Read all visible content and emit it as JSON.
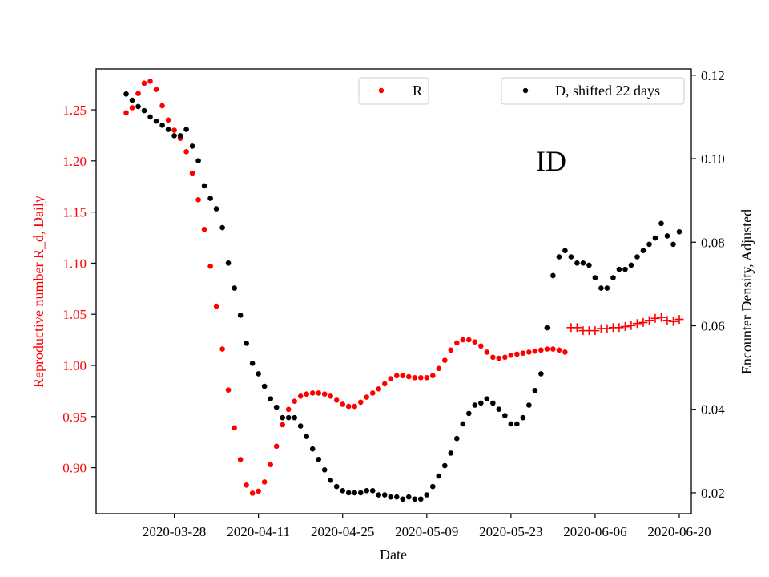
{
  "chart_data": {
    "type": "scatter",
    "annotation": "ID",
    "xlabel": "Date",
    "ylabel_left": "Reproductive number R_d, Daily",
    "ylabel_right": "Encounter Density, Adjusted",
    "x_tick_labels": [
      "2020-03-28",
      "2020-04-11",
      "2020-04-25",
      "2020-05-09",
      "2020-05-23",
      "2020-06-06",
      "2020-06-20"
    ],
    "x_ticks": [
      "2020-03-28",
      "2020-04-11",
      "2020-04-25",
      "2020-05-09",
      "2020-05-23",
      "2020-06-06",
      "2020-06-20"
    ],
    "xlim": [
      "2020-03-15",
      "2020-06-22"
    ],
    "ylim_left": [
      0.855,
      1.29
    ],
    "ylim_right": [
      0.015,
      0.1215
    ],
    "yticks_left": [
      0.9,
      0.95,
      1.0,
      1.05,
      1.1,
      1.15,
      1.2,
      1.25
    ],
    "ytick_labels_left": [
      "0.90",
      "0.95",
      "1.00",
      "1.05",
      "1.10",
      "1.15",
      "1.20",
      "1.25"
    ],
    "yticks_right": [
      0.02,
      0.04,
      0.06,
      0.08,
      0.1,
      0.12
    ],
    "ytick_labels_right": [
      "0.02",
      "0.04",
      "0.06",
      "0.08",
      "0.10",
      "0.12"
    ],
    "colors": {
      "R": "#ff0000",
      "D": "#000000",
      "left_axis_text": "#ff0000"
    },
    "legend_left": {
      "label": "R",
      "color": "#ff0000",
      "placement": "top-center"
    },
    "legend_right": {
      "label": "D, shifted 22 days",
      "color": "#000000",
      "placement": "top-right"
    },
    "series": [
      {
        "name": "R",
        "axis": "left",
        "marker": "dot",
        "color": "#ff0000",
        "start_date": "2020-03-20",
        "values": [
          1.247,
          1.252,
          1.266,
          1.276,
          1.278,
          1.27,
          1.254,
          1.24,
          1.23,
          1.222,
          1.209,
          1.188,
          1.162,
          1.133,
          1.097,
          1.058,
          1.016,
          0.976,
          0.939,
          0.908,
          0.883,
          0.875,
          0.877,
          0.886,
          0.903,
          0.921,
          0.942,
          0.957,
          0.965,
          0.97,
          0.972,
          0.973,
          0.973,
          0.972,
          0.97,
          0.966,
          0.962,
          0.96,
          0.96,
          0.964,
          0.969,
          0.973,
          0.977,
          0.982,
          0.987,
          0.99,
          0.99,
          0.989,
          0.988,
          0.988,
          0.988,
          0.99,
          0.997,
          1.005,
          1.015,
          1.022,
          1.025,
          1.025,
          1.023,
          1.019,
          1.013,
          1.008,
          1.007,
          1.008,
          1.01,
          1.011,
          1.012,
          1.013,
          1.014,
          1.015,
          1.016,
          1.016,
          1.015,
          1.013
        ]
      },
      {
        "name": "R",
        "axis": "left",
        "marker": "plus",
        "color": "#ff0000",
        "start_date": "2020-06-02",
        "values": [
          1.037,
          1.037,
          1.034,
          1.034,
          1.034,
          1.036,
          1.036,
          1.037,
          1.037,
          1.038,
          1.039,
          1.041,
          1.042,
          1.044,
          1.046,
          1.047,
          1.044,
          1.043,
          1.045
        ]
      },
      {
        "name": "D, shifted 22 days",
        "axis": "right",
        "marker": "dot",
        "color": "#000000",
        "start_date": "2020-03-20",
        "values": [
          0.1155,
          0.114,
          0.1125,
          0.1115,
          0.11,
          0.109,
          0.108,
          0.107,
          0.1055,
          0.1055,
          0.107,
          0.103,
          0.0995,
          0.0935,
          0.0905,
          0.088,
          0.0835,
          0.075,
          0.069,
          0.0625,
          0.0558,
          0.051,
          0.0485,
          0.0455,
          0.0425,
          0.0405,
          0.038,
          0.038,
          0.038,
          0.036,
          0.0335,
          0.0305,
          0.028,
          0.0255,
          0.023,
          0.0215,
          0.0205,
          0.02,
          0.02,
          0.02,
          0.0205,
          0.0205,
          0.0195,
          0.0195,
          0.019,
          0.019,
          0.0185,
          0.019,
          0.0185,
          0.0185,
          0.0195,
          0.0215,
          0.024,
          0.0265,
          0.0295,
          0.033,
          0.0365,
          0.039,
          0.041,
          0.0415,
          0.0425,
          0.0415,
          0.04,
          0.0385,
          0.0365,
          0.0365,
          0.038,
          0.041,
          0.0445,
          0.0485,
          0.0595,
          0.072,
          0.0765,
          0.078,
          0.0765,
          0.075,
          0.075,
          0.0745,
          0.0715,
          0.069,
          0.069,
          0.0715,
          0.0735,
          0.0735,
          0.0745,
          0.0765,
          0.078,
          0.0795,
          0.081,
          0.0845,
          0.0815,
          0.0795,
          0.0825
        ]
      }
    ]
  }
}
